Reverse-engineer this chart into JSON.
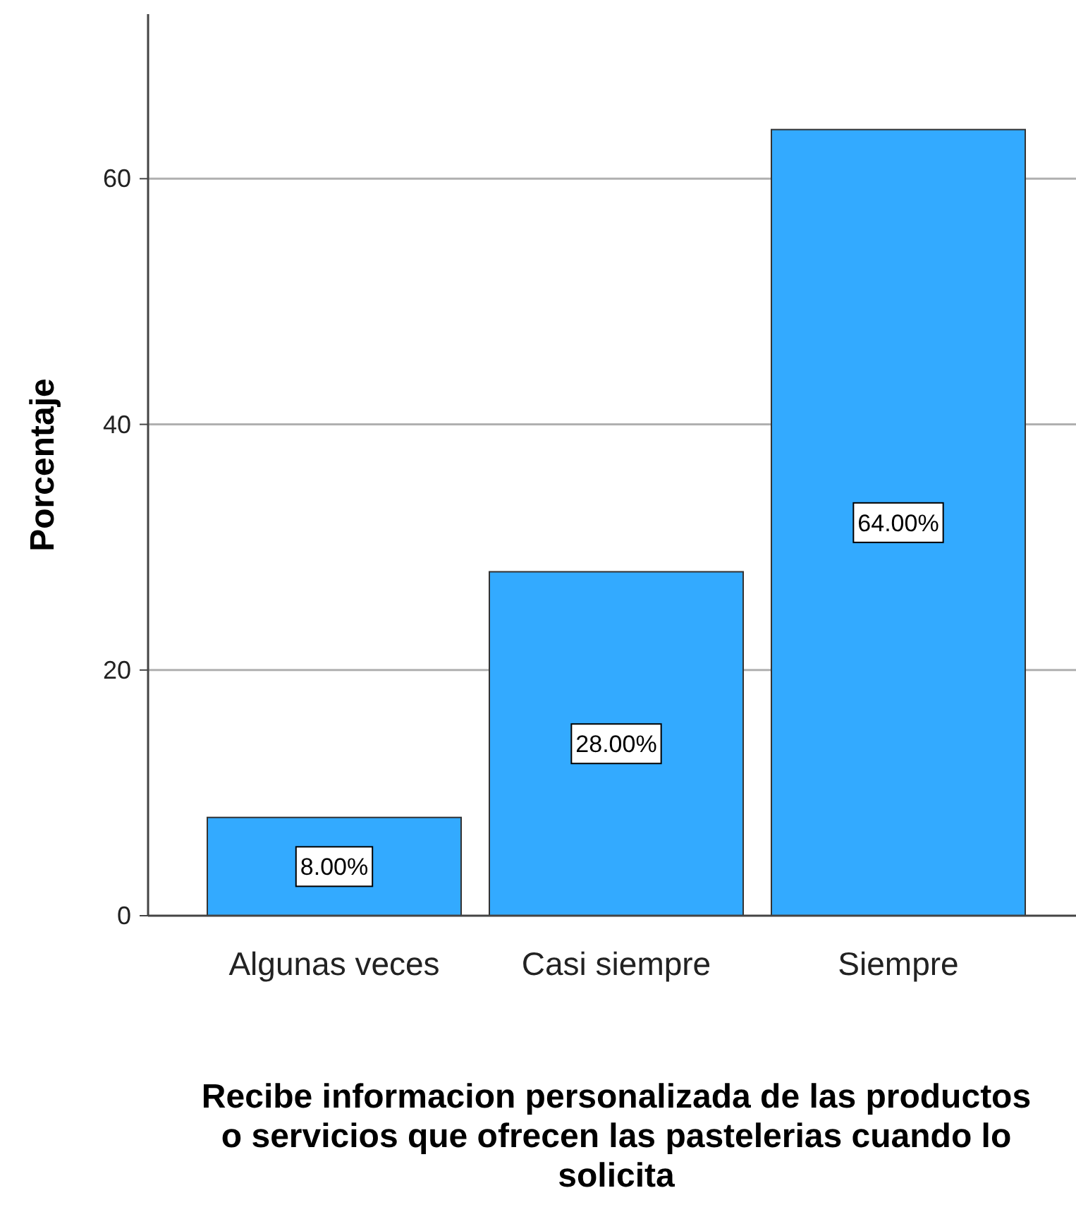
{
  "chart_data": {
    "type": "bar",
    "xlabel": "Recibe informacion personalizada de las productos o servicios que ofrecen las pastelerias cuando lo solicita",
    "ylabel": "Porcentaje",
    "categories": [
      "Algunas veces",
      "Casi siempre",
      "Siempre"
    ],
    "values": [
      8,
      28,
      64
    ],
    "color": "#33aaff",
    "value_labels": [
      "8.00%",
      "28.00%",
      "64.00%"
    ],
    "ylim": [
      0,
      73.4
    ],
    "yticks": [
      0,
      20,
      40,
      60
    ],
    "grid": "y"
  }
}
